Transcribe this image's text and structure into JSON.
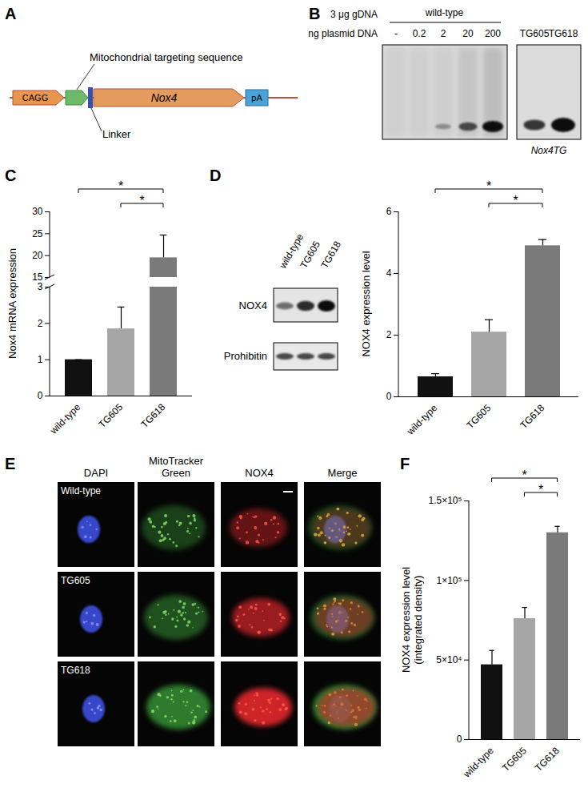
{
  "chart_data": [
    {
      "type": "bar",
      "panel": "C",
      "categories": [
        "wild-type",
        "TG605",
        "TG618"
      ],
      "values": [
        1,
        1.85,
        19.5
      ],
      "errors": [
        0,
        0.6,
        5.2
      ],
      "colors": [
        "#111111",
        "#a6a6a6",
        "#7a7a7a"
      ],
      "ylabel": "Nox4 mRNA expression",
      "ylim": [
        0,
        30
      ],
      "y_break": [
        3,
        15
      ],
      "yticks": [
        0,
        1,
        2,
        3,
        15,
        20,
        25,
        30
      ],
      "significance": [
        {
          "from": "wild-type",
          "to": "TG618",
          "label": "*"
        },
        {
          "from": "TG605",
          "to": "TG618",
          "label": "*"
        }
      ]
    },
    {
      "type": "bar",
      "panel": "D",
      "categories": [
        "wild-type",
        "TG605",
        "TG618"
      ],
      "values": [
        0.65,
        2.1,
        4.9
      ],
      "errors": [
        0.1,
        0.4,
        0.2
      ],
      "colors": [
        "#111111",
        "#a6a6a6",
        "#7a7a7a"
      ],
      "ylabel": "NOX4 expression level",
      "ylim": [
        0,
        6
      ],
      "yticks": [
        0,
        2,
        4,
        6
      ],
      "significance": [
        {
          "from": "wild-type",
          "to": "TG618",
          "label": "*"
        },
        {
          "from": "TG605",
          "to": "TG618",
          "label": "*"
        }
      ]
    },
    {
      "type": "bar",
      "panel": "F",
      "categories": [
        "wild-type",
        "TG605",
        "TG618"
      ],
      "values": [
        47000,
        76000,
        130000
      ],
      "errors": [
        9000,
        7000,
        4000
      ],
      "colors": [
        "#111111",
        "#a6a6a6",
        "#7a7a7a"
      ],
      "ylabel": [
        "NOX4 expression level",
        "(integrated density)"
      ],
      "ylim": [
        0,
        150000
      ],
      "yticks": [
        0,
        {
          "value": 50000,
          "label": "5×10⁴"
        },
        {
          "value": 100000,
          "label": "1×10⁵"
        },
        {
          "value": 150000,
          "label": "1.5×10⁵"
        }
      ],
      "significance": [
        {
          "from": "wild-type",
          "to": "TG618",
          "label": "*"
        },
        {
          "from": "TG605",
          "to": "TG618",
          "label": "*"
        }
      ]
    }
  ],
  "figure": {
    "construct": {
      "letter": "A",
      "promoter": "CAGG",
      "gene": "Nox4",
      "polyA": "pA",
      "mts_label": "Mitochondrial targeting sequence",
      "linker_label": "Linker"
    },
    "southern_blot": {
      "letter": "B",
      "row1": "3 μg gDNA",
      "row2": "ng plasmid DNA",
      "group": "wild-type",
      "lanes": [
        "-",
        "0.2",
        "2",
        "20",
        "200"
      ],
      "extra_lanes": [
        "TG605",
        "TG618"
      ],
      "band": "Nox4TG"
    },
    "western_blot": {
      "lanes": [
        "wild-type",
        "TG605",
        "TG618"
      ],
      "rows": [
        "NOX4",
        "Prohibitin"
      ]
    },
    "imaging": {
      "letter": "E",
      "columns": [
        "DAPI",
        "MitoTracker Green",
        "NOX4",
        "Merge"
      ],
      "rows": [
        "Wild-type",
        "TG605",
        "TG618"
      ]
    }
  }
}
